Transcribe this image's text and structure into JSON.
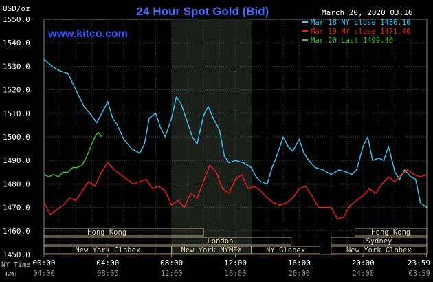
{
  "header": {
    "title": "24 Hour Spot Gold (Bid)",
    "unit_label": "USD/oz",
    "timestamp": "March 20, 2020 03:16",
    "watermark": "www.kitco.com"
  },
  "chart_data": {
    "type": "line",
    "title": "24 Hour Spot Gold (Bid)",
    "ylabel": "USD/oz",
    "ylim": [
      1450,
      1550
    ],
    "xlim": [
      0,
      24
    ],
    "y_ticks": [
      "1550.0",
      "1540.0",
      "1530.0",
      "1520.0",
      "1510.0",
      "1500.0",
      "1490.0",
      "1480.0",
      "1470.0",
      "1460.0",
      "1450.0"
    ],
    "x_ticks_ny": [
      "00:00",
      "04:00",
      "08:00",
      "12:00",
      "16:00",
      "20:00",
      "23:59"
    ],
    "x_ticks_gmt": [
      "04:00",
      "08:00",
      "12:00",
      "16:00",
      "20:00",
      "24:00",
      "03:59"
    ],
    "x_tick_hours": [
      0,
      4,
      8,
      12,
      16,
      20,
      23.98
    ],
    "grid": true,
    "legend_position": "top-right",
    "shaded_region_hours": [
      8,
      13
    ],
    "axis_row_labels": [
      "NY Time",
      "GMT"
    ],
    "series": [
      {
        "name": "Mar 18 NY close 1486.10",
        "color": "#33ccff",
        "x": [
          0,
          0.5,
          1,
          1.5,
          2,
          2.5,
          3,
          3.3,
          3.7,
          4,
          4.3,
          4.6,
          5,
          5.5,
          6,
          6.3,
          6.6,
          7,
          7.3,
          7.6,
          8,
          8.3,
          8.6,
          9,
          9.3,
          9.6,
          10,
          10.3,
          10.6,
          11,
          11.3,
          11.6,
          12,
          12.5,
          13,
          13.3,
          13.6,
          14,
          14.3,
          14.6,
          15,
          15.3,
          15.6,
          16,
          16.3,
          16.6,
          17,
          17.5,
          18,
          18.5,
          19,
          19.3,
          19.6,
          20,
          20.3,
          20.6,
          21,
          21.3,
          21.6,
          22,
          22.3,
          22.6,
          23,
          23.3,
          23.6,
          24
        ],
        "y": [
          1533,
          1530,
          1528,
          1527,
          1520,
          1513,
          1509,
          1506,
          1511,
          1515,
          1508,
          1505,
          1499,
          1495,
          1493,
          1497,
          1508,
          1510,
          1504,
          1500,
          1508,
          1517,
          1514,
          1506,
          1500,
          1497,
          1509,
          1513,
          1508,
          1503,
          1492,
          1489,
          1490,
          1489,
          1487,
          1483,
          1481,
          1480,
          1487,
          1492,
          1500,
          1496,
          1494,
          1499,
          1493,
          1490,
          1487,
          1486,
          1484,
          1486,
          1485,
          1484,
          1486,
          1496,
          1500,
          1490,
          1491,
          1490,
          1496,
          1485,
          1482,
          1486,
          1483,
          1482,
          1472,
          1470
        ]
      },
      {
        "name": "Mar 19 NY close 1471.40",
        "color": "#ff1a1a",
        "x": [
          0,
          0.4,
          0.8,
          1.2,
          1.6,
          2,
          2.4,
          2.8,
          3.2,
          3.6,
          4,
          4.4,
          4.8,
          5.2,
          5.6,
          6,
          6.4,
          6.8,
          7.2,
          7.6,
          8,
          8.4,
          8.8,
          9.2,
          9.6,
          10,
          10.4,
          10.8,
          11.2,
          11.6,
          12,
          12.4,
          12.8,
          13.2,
          13.6,
          14,
          14.4,
          14.8,
          15.2,
          15.6,
          16,
          16.4,
          16.8,
          17.2,
          17.6,
          18,
          18.4,
          18.8,
          19.2,
          19.6,
          20,
          20.4,
          20.8,
          21.2,
          21.6,
          22,
          22.4,
          22.8,
          23.2,
          23.6,
          24
        ],
        "y": [
          1472,
          1467,
          1469,
          1471,
          1474,
          1473,
          1477,
          1481,
          1479,
          1485,
          1489,
          1486,
          1484,
          1482,
          1480,
          1481,
          1482,
          1478,
          1479,
          1477,
          1471,
          1473,
          1470,
          1476,
          1474,
          1481,
          1488,
          1485,
          1478,
          1476,
          1482,
          1484,
          1478,
          1479,
          1477,
          1474,
          1472,
          1471,
          1472,
          1474,
          1478,
          1479,
          1475,
          1470,
          1470,
          1470,
          1465,
          1466,
          1471,
          1473,
          1475,
          1478,
          1476,
          1480,
          1483,
          1481,
          1484,
          1486,
          1484,
          1483,
          1484
        ]
      },
      {
        "name": "Mar 20 Last 1499.40",
        "color": "#33cc33",
        "x": [
          0,
          0.3,
          0.6,
          0.9,
          1.2,
          1.5,
          1.8,
          2.1,
          2.4,
          2.7,
          3,
          3.2,
          3.4,
          3.6
        ],
        "y": [
          1484,
          1483,
          1484,
          1483,
          1485,
          1485,
          1487,
          1487,
          1488,
          1492,
          1497,
          1500,
          1502,
          1500
        ]
      }
    ]
  },
  "sessions": [
    {
      "label": "Hong Kong",
      "row": 0,
      "start": 0,
      "end": 10,
      "display": [
        1.3,
        6.6
      ]
    },
    {
      "label": "Hong Kong",
      "row": 0,
      "start": 19.5,
      "end": 24,
      "display": [
        19.5,
        24
      ]
    },
    {
      "label": "London",
      "row": 1,
      "start": 0,
      "end": 15.5,
      "display": [
        6.6,
        15.5
      ]
    },
    {
      "label": "Sydney",
      "row": 1,
      "start": 18,
      "end": 24,
      "display": [
        18,
        24
      ]
    },
    {
      "label": "New York Globex",
      "row": 2,
      "start": 0,
      "end": 8,
      "display": [
        0,
        8
      ]
    },
    {
      "label": "New York NYMEX",
      "row": 2,
      "start": 8,
      "end": 13,
      "display": [
        8,
        13
      ]
    },
    {
      "label": "NY Globex",
      "row": 2,
      "start": 13,
      "end": 17.3,
      "display": [
        13,
        17.3
      ]
    },
    {
      "label": "New York Globex",
      "row": 2,
      "start": 18,
      "end": 24,
      "display": [
        18,
        24
      ]
    }
  ]
}
